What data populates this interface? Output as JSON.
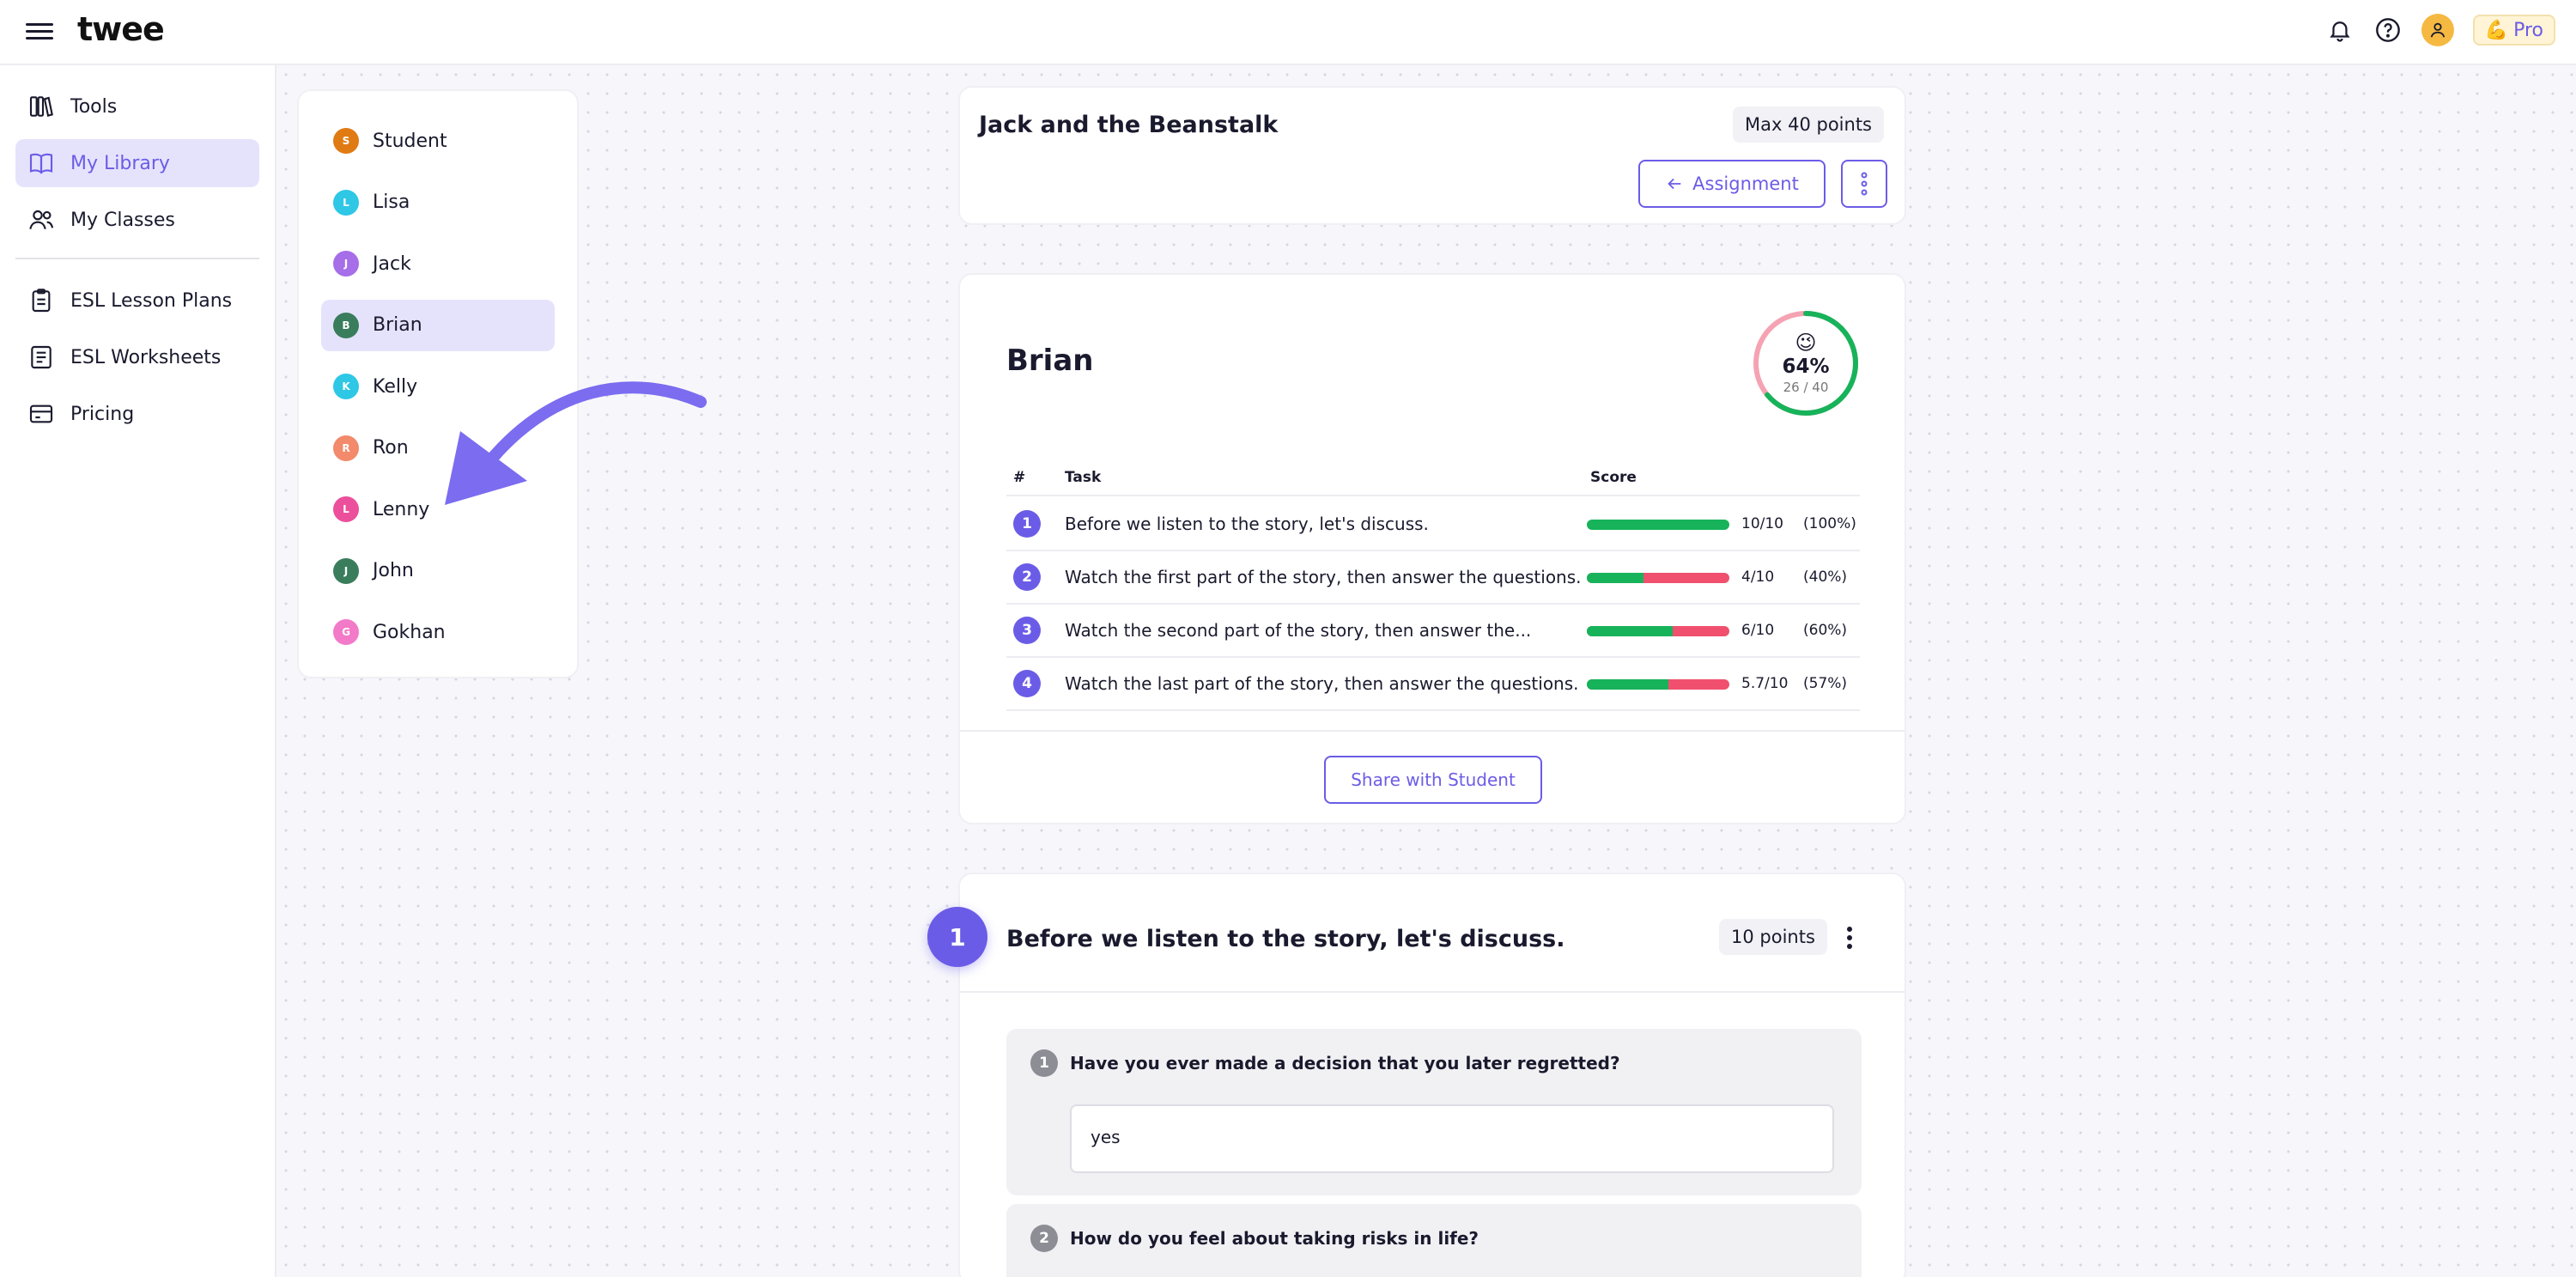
{
  "app": {
    "logo": "twee"
  },
  "header": {
    "pro_label": "Pro",
    "pro_emoji": "💪"
  },
  "sidebar": {
    "items": [
      {
        "label": "Tools",
        "icon": "tools-icon"
      },
      {
        "label": "My Library",
        "icon": "library-icon",
        "active": true
      },
      {
        "label": "My Classes",
        "icon": "classes-icon"
      },
      {
        "label": "ESL Lesson Plans",
        "icon": "lesson-plans-icon"
      },
      {
        "label": "ESL Worksheets",
        "icon": "worksheets-icon"
      },
      {
        "label": "Pricing",
        "icon": "pricing-icon"
      }
    ]
  },
  "students": [
    {
      "initial": "S",
      "name": "Student",
      "color": "#e07b14"
    },
    {
      "initial": "L",
      "name": "Lisa",
      "color": "#2ec7e6"
    },
    {
      "initial": "J",
      "name": "Jack",
      "color": "#a66ee8"
    },
    {
      "initial": "B",
      "name": "Brian",
      "color": "#3a7d5c",
      "active": true
    },
    {
      "initial": "K",
      "name": "Kelly",
      "color": "#2ec7e6"
    },
    {
      "initial": "R",
      "name": "Ron",
      "color": "#f28a6b"
    },
    {
      "initial": "L",
      "name": "Lenny",
      "color": "#ec4f9b"
    },
    {
      "initial": "J",
      "name": "John",
      "color": "#3a7d5c"
    },
    {
      "initial": "G",
      "name": "Gokhan",
      "color": "#f27ac8"
    }
  ],
  "assignment": {
    "title": "Jack and the Beanstalk",
    "max_points": "Max 40 points",
    "assignment_button": "Assignment"
  },
  "result": {
    "student_name": "Brian",
    "emoji": "😉",
    "percent_label": "64%",
    "score_label": "26 / 40",
    "percent_value": 0.64,
    "headers": {
      "num": "#",
      "task": "Task",
      "score": "Score"
    },
    "rows": [
      {
        "n": "1",
        "task": "Before we listen to the story, let's discuss.",
        "fraction": 1.0,
        "score": "10/10",
        "pct": "(100%)"
      },
      {
        "n": "2",
        "task": "Watch the first part of the story, then answer the questions.",
        "fraction": 0.4,
        "score": "4/10",
        "pct": "(40%)"
      },
      {
        "n": "3",
        "task": "Watch the second part of the story, then answer the...",
        "fraction": 0.6,
        "score": "6/10",
        "pct": "(60%)"
      },
      {
        "n": "4",
        "task": "Watch the last part of the story, then answer the questions.",
        "fraction": 0.57,
        "score": "5.7/10",
        "pct": "(57%)"
      }
    ],
    "share_button": "Share with Student"
  },
  "task": {
    "number": "1",
    "title": "Before we listen to the story, let's discuss.",
    "points": "10 points",
    "questions": [
      {
        "n": "1",
        "text": "Have you ever made a decision that you later regretted?",
        "answer": "yes"
      },
      {
        "n": "2",
        "text": "How do you feel about taking risks in life?"
      }
    ]
  }
}
